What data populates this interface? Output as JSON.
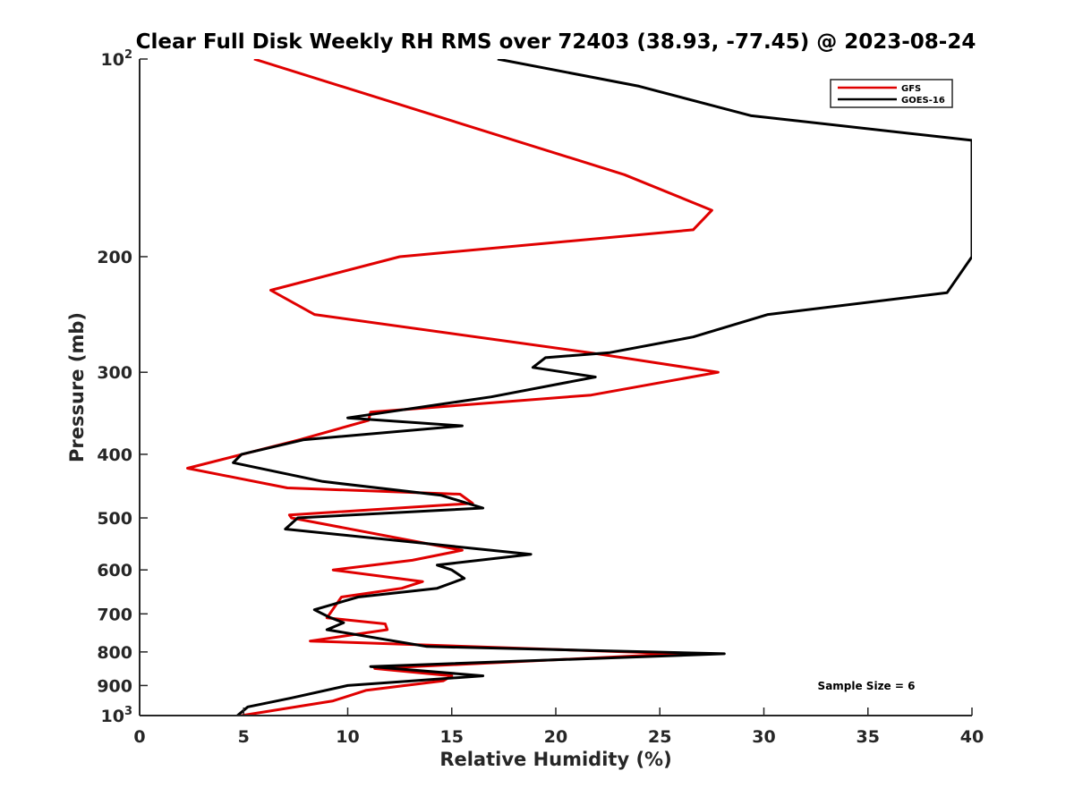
{
  "chart_data": {
    "type": "line",
    "title": "Clear Full Disk Weekly RH RMS over 72403 (38.93, -77.45) @ 2023-08-24",
    "xlabel": "Relative Humidity (%)",
    "ylabel": "Pressure (mb)",
    "xlim": [
      0,
      40
    ],
    "ylim": [
      100,
      1000
    ],
    "y_scale": "log",
    "y_reversed": true,
    "grid": false,
    "legend_position": "top-right",
    "x_ticks": [
      "0",
      "5",
      "10",
      "15",
      "20",
      "25",
      "30",
      "35",
      "40"
    ],
    "y_ticks": [
      {
        "value": 100,
        "base": "10",
        "exp": "2"
      },
      {
        "value": 200,
        "label": "200"
      },
      {
        "value": 300,
        "label": "300"
      },
      {
        "value": 400,
        "label": "400"
      },
      {
        "value": 500,
        "label": "500"
      },
      {
        "value": 600,
        "label": "600"
      },
      {
        "value": 700,
        "label": "700"
      },
      {
        "value": 800,
        "label": "800"
      },
      {
        "value": 900,
        "label": "900"
      },
      {
        "value": 1000,
        "base": "10",
        "exp": "3"
      }
    ],
    "annotation": "Sample Size = 6",
    "series": [
      {
        "name": "GFS",
        "color": "#e00000",
        "x": [
          5.5,
          23.3,
          27.5,
          26.6,
          12.5,
          6.3,
          8.4,
          21.6,
          27.8,
          21.7,
          11.1,
          11.0,
          7.7,
          2.3,
          7.1,
          15.4,
          16.0,
          7.2,
          7.3,
          15.5,
          13.1,
          9.3,
          13.6,
          12.6,
          9.7,
          9.0,
          11.8,
          11.9,
          8.2,
          26.0,
          11.3,
          15.0,
          14.6,
          10.9,
          9.3,
          4.9
        ],
        "y": [
          100,
          150,
          170,
          182,
          200,
          225,
          245,
          280,
          300,
          325,
          345,
          355,
          380,
          420,
          450,
          460,
          475,
          495,
          500,
          560,
          580,
          600,
          625,
          640,
          660,
          710,
          725,
          740,
          770,
          805,
          848,
          870,
          885,
          915,
          950,
          1000
        ]
      },
      {
        "name": "GOES-16",
        "color": "#000000",
        "x": [
          17.2,
          24.0,
          29.4,
          40.0,
          40.0,
          38.8,
          30.2,
          26.6,
          22.6,
          19.5,
          18.9,
          21.9,
          16.9,
          10.0,
          15.5,
          7.9,
          4.9,
          4.5,
          8.8,
          14.5,
          16.5,
          7.6,
          7.0,
          18.8,
          14.3,
          15.0,
          15.6,
          14.3,
          10.5,
          8.4,
          9.1,
          9.8,
          9.0,
          13.8,
          28.1,
          11.1,
          16.5,
          10.0,
          7.3,
          5.2,
          4.7
        ],
        "y": [
          100,
          110,
          122,
          133,
          200,
          227,
          245,
          265,
          280,
          285,
          295,
          305,
          327,
          352,
          362,
          380,
          400,
          412,
          440,
          462,
          483,
          500,
          520,
          568,
          590,
          600,
          618,
          640,
          660,
          690,
          708,
          722,
          740,
          785,
          805,
          842,
          870,
          900,
          940,
          970,
          1000
        ]
      }
    ]
  }
}
